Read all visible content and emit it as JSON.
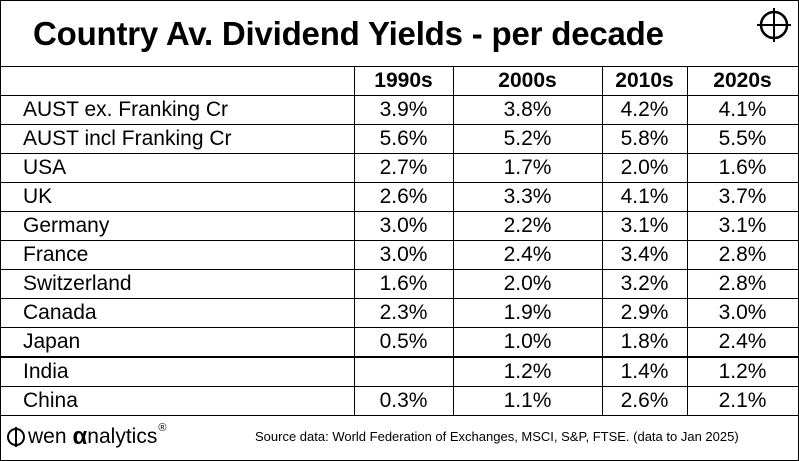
{
  "chart_data": {
    "type": "table",
    "title": "Country Av. Dividend Yields - per decade",
    "columns": [
      "1990s",
      "2000s",
      "2010s",
      "2020s"
    ],
    "rows": [
      {
        "name": "AUST ex. Franking Cr",
        "values": [
          "3.9%",
          "3.8%",
          "4.2%",
          "4.1%"
        ]
      },
      {
        "name": "AUST incl Franking Cr",
        "values": [
          "5.6%",
          "5.2%",
          "5.8%",
          "5.5%"
        ]
      },
      {
        "name": "USA",
        "values": [
          "2.7%",
          "1.7%",
          "2.0%",
          "1.6%"
        ]
      },
      {
        "name": "UK",
        "values": [
          "2.6%",
          "3.3%",
          "4.1%",
          "3.7%"
        ]
      },
      {
        "name": "Germany",
        "values": [
          "3.0%",
          "2.2%",
          "3.1%",
          "3.1%"
        ]
      },
      {
        "name": "France",
        "values": [
          "3.0%",
          "2.4%",
          "3.4%",
          "2.8%"
        ]
      },
      {
        "name": "Switzerland",
        "values": [
          "1.6%",
          "2.0%",
          "3.2%",
          "2.8%"
        ]
      },
      {
        "name": "Canada",
        "values": [
          "2.3%",
          "1.9%",
          "2.9%",
          "3.0%"
        ]
      },
      {
        "name": "Japan",
        "values": [
          "0.5%",
          "1.0%",
          "1.8%",
          "2.4%"
        ]
      },
      {
        "name": "India",
        "values": [
          "",
          "1.2%",
          "1.4%",
          "1.2%"
        ]
      },
      {
        "name": "China",
        "values": [
          "0.3%",
          "1.1%",
          "2.6%",
          "2.1%"
        ]
      }
    ],
    "source": "Source data: World Federation of Exchanges, MSCI, S&P, FTSE.  (data to Jan 2025)"
  },
  "branding": {
    "logo_text_wen": "wen",
    "logo_alpha": "α",
    "logo_text_analytics": "nalytics",
    "logo_reg": "®",
    "corner_icon": "crosshair-target-icon",
    "logo_icon": "o-with-bar-icon"
  }
}
